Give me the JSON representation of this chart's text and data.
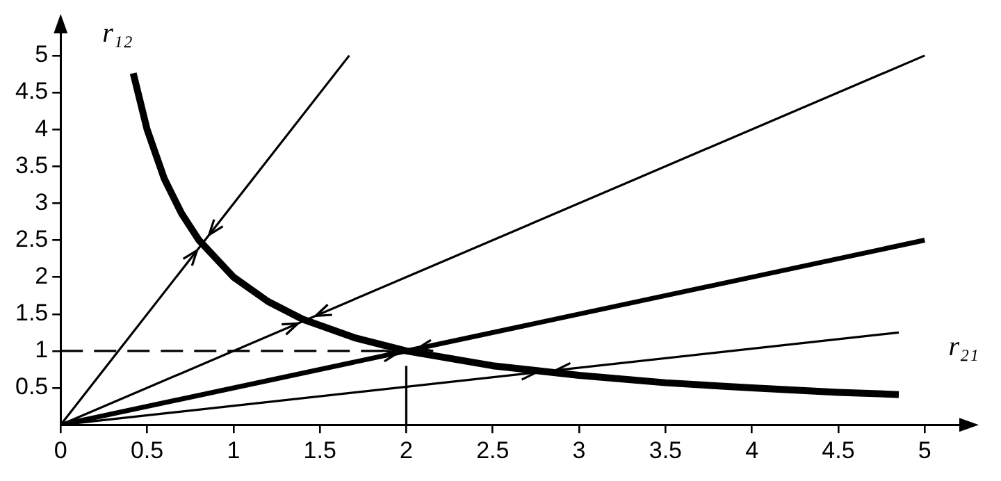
{
  "chart_data": {
    "type": "line",
    "xlabel": "r₂₁",
    "ylabel": "r₁₂",
    "xlim": [
      0,
      5.2
    ],
    "ylim": [
      0,
      5.3
    ],
    "xticks": [
      0,
      0.5,
      1,
      1.5,
      2,
      2.5,
      3,
      3.5,
      4,
      4.5,
      5
    ],
    "yticks": [
      0.5,
      1,
      1.5,
      2,
      2.5,
      3,
      3.5,
      4,
      4.5,
      5
    ],
    "grid": false,
    "legend": false,
    "marker": "none",
    "series": [
      {
        "color": "#000000",
        "x": [
          0.42,
          0.5,
          0.6,
          0.7,
          0.8,
          1,
          1.2,
          1.4,
          1.7,
          2,
          2.5,
          3,
          3.5,
          4,
          4.5,
          4.85
        ],
        "values": [
          4.76,
          4,
          3.33,
          2.86,
          2.5,
          2,
          1.67,
          1.43,
          1.18,
          1,
          0.8,
          0.67,
          0.57,
          0.5,
          0.44,
          0.41
        ]
      },
      {
        "color": "#000000",
        "x": [
          0,
          1.67
        ],
        "values": [
          0,
          5
        ]
      },
      {
        "color": "#000000",
        "x": [
          0,
          5
        ],
        "values": [
          0,
          5
        ]
      },
      {
        "color": "#000000",
        "x": [
          0,
          5
        ],
        "values": [
          0,
          2.5
        ]
      },
      {
        "color": "#000000",
        "x": [
          0,
          4.85
        ],
        "values": [
          0,
          1.25
        ]
      },
      {
        "color": "#000000",
        "x": [
          0,
          2
        ],
        "values": [
          1,
          1
        ],
        "line_style": "dashed"
      },
      {
        "color": "#000000",
        "x": [
          2,
          2
        ],
        "values": [
          0,
          0.8
        ]
      }
    ]
  }
}
